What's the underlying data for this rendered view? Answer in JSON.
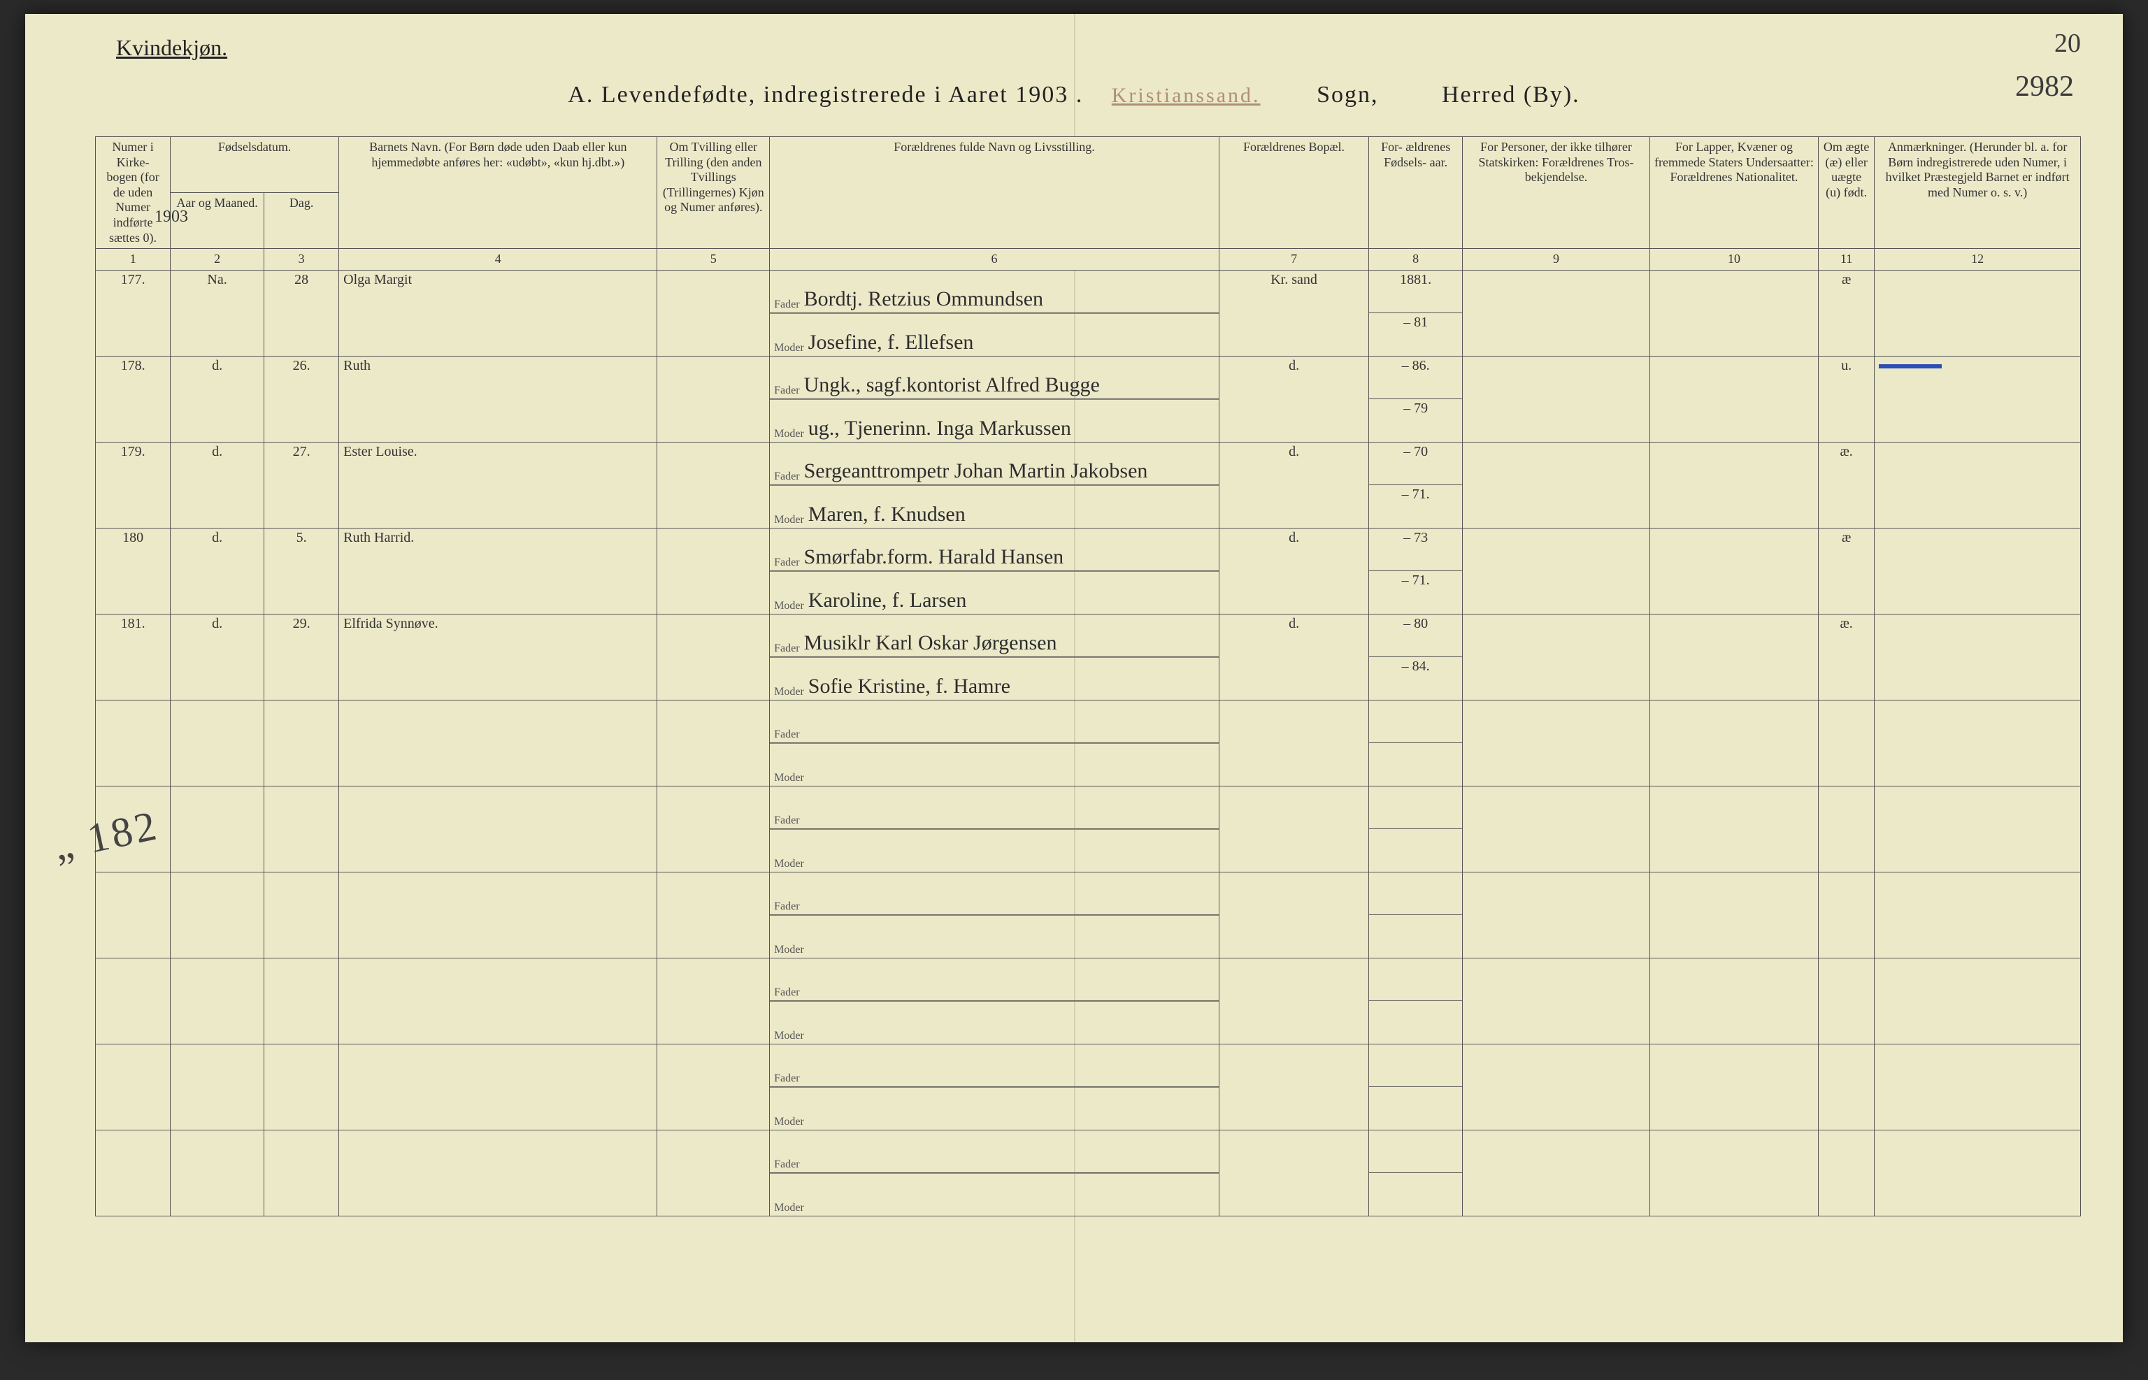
{
  "page": {
    "corner_number_top": "20",
    "corner_number_below": "2982",
    "gender_heading": "Kvindekjøn.",
    "title_prefix": "A.  Levendefødte, indregistrerede i Aaret 190",
    "title_year_script": "3 .",
    "stamp_parish": "Kristianssand.",
    "sogn_label": "Sogn,",
    "herred_label": "Herred (By).",
    "year_above_col2": "1903"
  },
  "columns": {
    "c1": "Numer i Kirke- bogen (for de uden Numer indførte sættes 0).",
    "c2a": "Fødselsdatum.",
    "c2": "Aar og Maaned.",
    "c3": "Dag.",
    "c4": "Barnets Navn.\n(For Børn døde uden Daab eller kun hjemmedøbte anføres her: «udøbt», «kun hj.dbt.»)",
    "c5": "Om Tvilling eller Trilling (den anden Tvillings (Trillingernes) Kjøn og Numer anføres).",
    "c6": "Forældrenes fulde Navn og Livsstilling.",
    "c7": "Forældrenes Bopæl.",
    "c8": "For- ældrenes Fødsels- aar.",
    "c9": "For Personer, der ikke tilhører Statskirken: Forældrenes Tros- bekjendelse.",
    "c10": "For Lapper, Kvæner og fremmede Staters Undersaatter: Forældrenes Nationalitet.",
    "c11": "Om ægte (æ) eller uægte (u) født.",
    "c12": "Anmærkninger.\n(Herunder bl. a. for Børn indregistrerede uden Numer, i hvilket Præstegjeld Barnet er indført med Numer o. s. v.)",
    "fader": "Fader",
    "moder": "Moder"
  },
  "colnums": [
    "1",
    "2",
    "3",
    "4",
    "5",
    "6",
    "7",
    "8",
    "9",
    "10",
    "11",
    "12"
  ],
  "rows": [
    {
      "num": "177.",
      "month": "Na.",
      "day": "28",
      "name": "Olga Margit",
      "fader": "Bordtj. Retzius Ommundsen",
      "moder": "Josefine, f. Ellefsen",
      "bopael": "Kr. sand",
      "f_aar": "1881.",
      "m_aar": "– 81",
      "legit": "æ",
      "anm": ""
    },
    {
      "num": "178.",
      "month": "d.",
      "day": "26.",
      "name": "Ruth",
      "fader": "Ungk., sagf.kontorist Alfred Bugge",
      "moder": "ug., Tjenerinn. Inga Markussen",
      "bopael": "d.",
      "f_aar": "– 86.",
      "m_aar": "– 79",
      "legit": "u.",
      "anm": "BLUE"
    },
    {
      "num": "179.",
      "month": "d.",
      "day": "27.",
      "name": "Ester Louise.",
      "fader": "Sergeanttrompetr Johan Martin Jakobsen",
      "moder": "Maren, f. Knudsen",
      "bopael": "d.",
      "f_aar": "– 70",
      "m_aar": "– 71.",
      "legit": "æ.",
      "anm": ""
    },
    {
      "num": "180",
      "month": "d.",
      "day": "5.",
      "name": "Ruth Harrid.",
      "fader": "Smørfabr.form. Harald Hansen",
      "moder": "Karoline, f. Larsen",
      "bopael": "d.",
      "f_aar": "– 73",
      "m_aar": "– 71.",
      "legit": "æ",
      "anm": ""
    },
    {
      "num": "181.",
      "month": "d.",
      "day": "29.",
      "name": "Elfrida Synnøve.",
      "fader": "Musiklr Karl Oskar Jørgensen",
      "moder": "Sofie Kristine, f. Hamre",
      "bopael": "d.",
      "f_aar": "– 80",
      "m_aar": "– 84.",
      "legit": "æ.",
      "anm": ""
    }
  ],
  "struck_entry": "„   182",
  "empty_rows": 5,
  "colors": {
    "paper": "#ece9c9",
    "ink": "#2d2d2d",
    "rule": "#555555",
    "blue_mark": "#2b4fb5",
    "stamp": "#b09070"
  },
  "layout": {
    "col_widths_pct": [
      4,
      5,
      4,
      17,
      6,
      24,
      8,
      5,
      10,
      9,
      3,
      11
    ]
  }
}
